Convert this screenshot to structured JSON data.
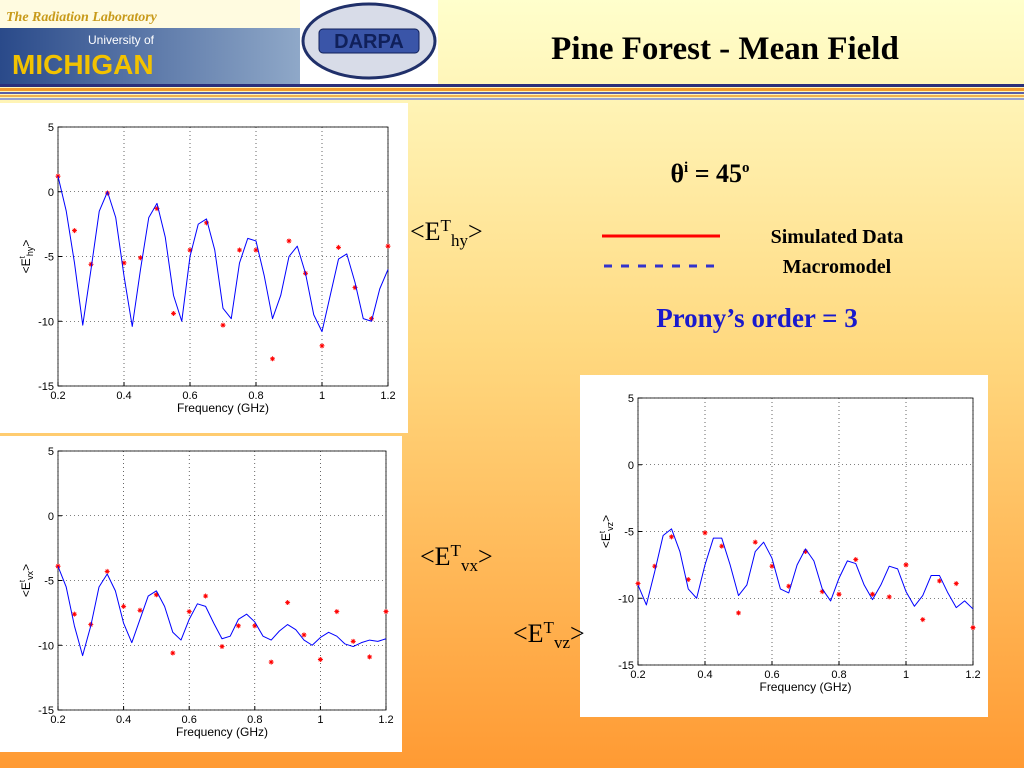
{
  "header": {
    "lab": "The Radiation Laboratory",
    "university_of": "University of",
    "michigan": "MICHIGAN",
    "darpa": "DARPA",
    "title": "Pine Forest - Mean Field"
  },
  "angle": {
    "base": "θ",
    "sup": "i",
    "text": " = 45",
    "unit": "o"
  },
  "legend": {
    "items": [
      {
        "label": "Simulated Data",
        "color": "#ff0000",
        "dash": false
      },
      {
        "label": "Macromodel",
        "color": "#3333cc",
        "dash": true
      }
    ]
  },
  "prony": "Prony’s order = 3",
  "chart_data": [
    {
      "type": "line",
      "label": {
        "main": "<E",
        "sup": "T",
        "sub": "hy",
        "end": ">"
      },
      "xlabel": "Frequency (GHz)",
      "ylabel": {
        "main": "<E",
        "sup": "t",
        "sub": "hy",
        "end": ">"
      },
      "xlim": [
        0.2,
        1.2
      ],
      "xticks": [
        0.2,
        0.4,
        0.6,
        0.8,
        1,
        1.2
      ],
      "ylim": [
        -15,
        5
      ],
      "yticks": [
        5,
        0,
        -5,
        -10,
        -15
      ],
      "grid": true,
      "series": [
        {
          "color": "#ff0000",
          "marker": "*",
          "x": [
            0.2,
            0.25,
            0.3,
            0.35,
            0.4,
            0.45,
            0.5,
            0.55,
            0.6,
            0.65,
            0.7,
            0.75,
            0.8,
            0.85,
            0.9,
            0.95,
            1.0,
            1.05,
            1.1,
            1.15,
            1.2
          ],
          "values": [
            1.2,
            -3,
            -5.6,
            -0.1,
            -5.5,
            -5.1,
            -1.3,
            -9.4,
            -4.5,
            -2.4,
            -10.3,
            -4.5,
            -4.5,
            -12.9,
            -3.8,
            -6.3,
            -11.9,
            -4.3,
            -7.4,
            -9.8,
            -4.2
          ]
        },
        {
          "color": "#0000ff",
          "x": [
            0.2,
            0.225,
            0.25,
            0.275,
            0.3,
            0.325,
            0.35,
            0.375,
            0.4,
            0.425,
            0.45,
            0.475,
            0.5,
            0.525,
            0.55,
            0.575,
            0.6,
            0.625,
            0.65,
            0.675,
            0.7,
            0.725,
            0.75,
            0.775,
            0.8,
            0.825,
            0.85,
            0.875,
            0.9,
            0.925,
            0.95,
            0.975,
            1.0,
            1.025,
            1.05,
            1.075,
            1.1,
            1.125,
            1.15,
            1.175,
            1.2
          ],
          "values": [
            1.2,
            -1.5,
            -5.5,
            -10.3,
            -6,
            -1.5,
            0,
            -2,
            -6.5,
            -10.4,
            -6,
            -2,
            -0.9,
            -3.5,
            -8,
            -10,
            -5,
            -2.5,
            -2.1,
            -4.5,
            -9,
            -9.8,
            -5.5,
            -3.6,
            -3.8,
            -6.5,
            -9.8,
            -8,
            -5,
            -4.2,
            -6.3,
            -9.5,
            -10.8,
            -8,
            -5.2,
            -4.8,
            -7,
            -9.8,
            -10,
            -7.5,
            -6
          ]
        }
      ]
    },
    {
      "type": "line",
      "label": {
        "main": "<E",
        "sup": "T",
        "sub": "vx",
        "end": ">"
      },
      "xlabel": "Frequency (GHz)",
      "ylabel": {
        "main": "<E",
        "sup": "t",
        "sub": "vx",
        "end": ">"
      },
      "xlim": [
        0.2,
        1.2
      ],
      "xticks": [
        0.2,
        0.4,
        0.6,
        0.8,
        1,
        1.2
      ],
      "ylim": [
        -15,
        5
      ],
      "yticks": [
        5,
        0,
        -5,
        -10,
        -15
      ],
      "grid": true,
      "series": [
        {
          "color": "#ff0000",
          "marker": "*",
          "x": [
            0.2,
            0.25,
            0.3,
            0.35,
            0.4,
            0.45,
            0.5,
            0.55,
            0.6,
            0.65,
            0.7,
            0.75,
            0.8,
            0.85,
            0.9,
            0.95,
            1.0,
            1.05,
            1.1,
            1.15,
            1.2
          ],
          "values": [
            -3.9,
            -7.6,
            -8.4,
            -4.3,
            -7,
            -7.3,
            -6.1,
            -10.6,
            -7.4,
            -6.2,
            -10.1,
            -8.5,
            -8.5,
            -11.3,
            -6.7,
            -9.2,
            -11.1,
            -7.4,
            -9.7,
            -10.9,
            -7.4
          ]
        },
        {
          "color": "#0000ff",
          "x": [
            0.2,
            0.225,
            0.25,
            0.275,
            0.3,
            0.325,
            0.35,
            0.375,
            0.4,
            0.425,
            0.45,
            0.475,
            0.5,
            0.525,
            0.55,
            0.575,
            0.6,
            0.625,
            0.65,
            0.675,
            0.7,
            0.725,
            0.75,
            0.775,
            0.8,
            0.825,
            0.85,
            0.875,
            0.9,
            0.925,
            0.95,
            0.975,
            1.0,
            1.025,
            1.05,
            1.075,
            1.1,
            1.125,
            1.15,
            1.175,
            1.2
          ],
          "values": [
            -3.9,
            -5.5,
            -8.5,
            -10.8,
            -8.5,
            -5.5,
            -4.5,
            -5.8,
            -8.3,
            -9.8,
            -8,
            -6.2,
            -5.8,
            -7,
            -9,
            -9.6,
            -8,
            -6.8,
            -7,
            -8.3,
            -9.5,
            -9.3,
            -8,
            -7.6,
            -8.2,
            -9.3,
            -9.6,
            -8.9,
            -8.4,
            -8.8,
            -9.6,
            -10,
            -9.4,
            -9,
            -9.3,
            -9.9,
            -10.1,
            -9.8,
            -9.6,
            -9.7,
            -9.5
          ]
        }
      ]
    },
    {
      "type": "line",
      "label": {
        "main": "<E",
        "sup": "T",
        "sub": "vz",
        "end": ">"
      },
      "xlabel": "Frequency (GHz)",
      "ylabel": {
        "main": "<E",
        "sup": "t",
        "sub": "vz",
        "end": ">"
      },
      "xlim": [
        0.2,
        1.2
      ],
      "xticks": [
        0.2,
        0.4,
        0.6,
        0.8,
        1,
        1.2
      ],
      "ylim": [
        -15,
        5
      ],
      "yticks": [
        5,
        0,
        -5,
        -10,
        -15
      ],
      "grid": true,
      "series": [
        {
          "color": "#ff0000",
          "marker": "*",
          "x": [
            0.2,
            0.25,
            0.3,
            0.35,
            0.4,
            0.45,
            0.5,
            0.55,
            0.6,
            0.65,
            0.7,
            0.75,
            0.8,
            0.85,
            0.9,
            0.95,
            1.0,
            1.05,
            1.1,
            1.15,
            1.2
          ],
          "values": [
            -8.9,
            -7.6,
            -5.4,
            -8.6,
            -5.1,
            -6.1,
            -11.1,
            -5.8,
            -7.6,
            -9.1,
            -6.5,
            -9.5,
            -9.7,
            -7.1,
            -9.7,
            -9.9,
            -7.5,
            -11.6,
            -8.7,
            -8.9,
            -12.2
          ]
        },
        {
          "color": "#0000ff",
          "x": [
            0.2,
            0.225,
            0.25,
            0.275,
            0.3,
            0.325,
            0.35,
            0.375,
            0.4,
            0.425,
            0.45,
            0.475,
            0.5,
            0.525,
            0.55,
            0.575,
            0.6,
            0.625,
            0.65,
            0.675,
            0.7,
            0.725,
            0.75,
            0.775,
            0.8,
            0.825,
            0.85,
            0.875,
            0.9,
            0.925,
            0.95,
            0.975,
            1.0,
            1.025,
            1.05,
            1.075,
            1.1,
            1.125,
            1.15,
            1.175,
            1.2
          ],
          "values": [
            -9,
            -10.5,
            -8,
            -5.3,
            -4.8,
            -6.5,
            -9.3,
            -10,
            -7.5,
            -5.5,
            -5.5,
            -7.5,
            -9.8,
            -9,
            -6.5,
            -5.8,
            -7,
            -9.3,
            -9.6,
            -7.5,
            -6.3,
            -7.2,
            -9.3,
            -10.2,
            -8.5,
            -7.2,
            -7.4,
            -9,
            -10.1,
            -9,
            -7.6,
            -7.8,
            -9.5,
            -10.6,
            -9.8,
            -8.3,
            -8.3,
            -9.6,
            -10.7,
            -10.2,
            -10.8
          ]
        }
      ]
    }
  ]
}
